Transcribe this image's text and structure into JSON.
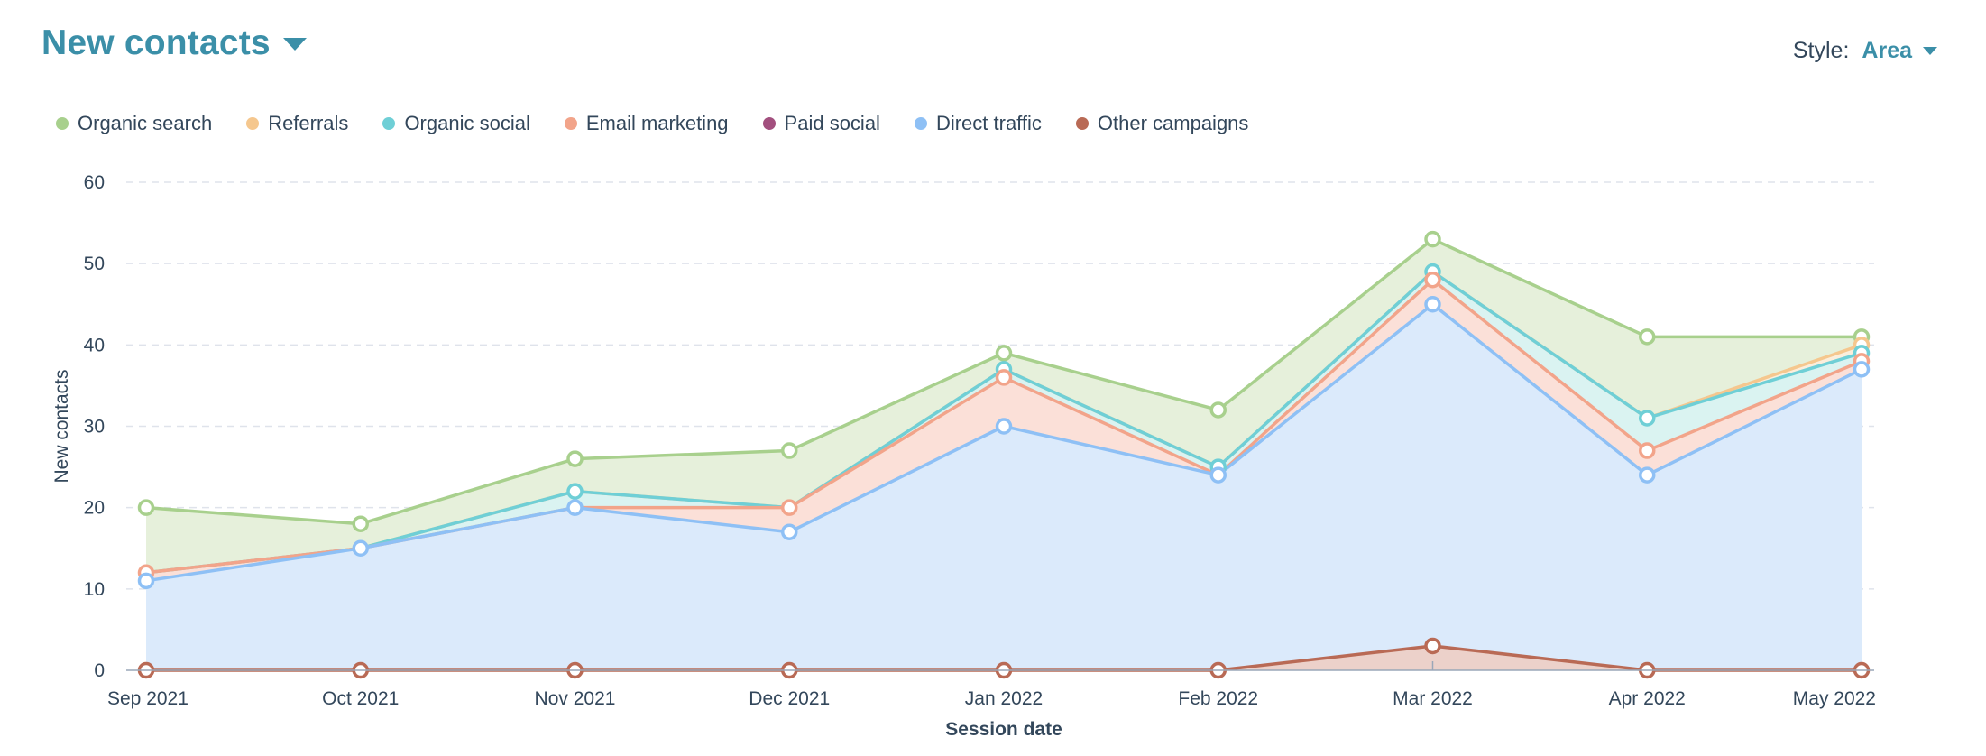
{
  "header": {
    "title": "New contacts",
    "style_label": "Style:",
    "style_value": "Area"
  },
  "colors": {
    "title": "#3b8fa8",
    "text": "#33475b",
    "grid": "#dfe3eb"
  },
  "legend": [
    {
      "name": "Organic search",
      "color": "#a8d08d"
    },
    {
      "name": "Referrals",
      "color": "#f5c78e"
    },
    {
      "name": "Organic social",
      "color": "#6fcfd6"
    },
    {
      "name": "Email marketing",
      "color": "#f2a48a"
    },
    {
      "name": "Paid social",
      "color": "#a24f7e"
    },
    {
      "name": "Direct traffic",
      "color": "#8ec0f5"
    },
    {
      "name": "Other campaigns",
      "color": "#b96a55"
    }
  ],
  "chart_data": {
    "type": "area",
    "stacked": true,
    "title": "New contacts",
    "xlabel": "Session date",
    "ylabel": "New contacts",
    "ylim": [
      0,
      60
    ],
    "yticks": [
      0,
      10,
      20,
      30,
      40,
      50,
      60
    ],
    "grid": true,
    "legend_position": "top-left",
    "categories": [
      "Sep 2021",
      "Oct 2021",
      "Nov 2021",
      "Dec 2021",
      "Jan 2022",
      "Feb 2022",
      "Mar 2022",
      "Apr 2022",
      "May 2022"
    ],
    "series": [
      {
        "name": "Other campaigns",
        "color": "#b96a55",
        "fill": "#ecd1ca",
        "values": [
          0,
          0,
          0,
          0,
          0,
          0,
          3,
          0,
          0
        ]
      },
      {
        "name": "Direct traffic",
        "color": "#8ec0f5",
        "fill": "#dbeafb",
        "values": [
          11,
          15,
          20,
          17,
          30,
          24,
          42,
          24,
          37
        ]
      },
      {
        "name": "Email marketing",
        "color": "#f2a48a",
        "fill": "#fbe0d8",
        "values": [
          1,
          0,
          0,
          3,
          6,
          0,
          3,
          3,
          1
        ]
      },
      {
        "name": "Organic social",
        "color": "#6fcfd6",
        "fill": "#daf3f1",
        "values": [
          0,
          0,
          2,
          0,
          1,
          1,
          1,
          4,
          1
        ]
      },
      {
        "name": "Referrals",
        "color": "#f5c78e",
        "fill": "#fbeedc",
        "values": [
          0,
          0,
          0,
          0,
          0,
          0,
          0,
          0,
          1
        ]
      },
      {
        "name": "Organic search",
        "color": "#a8d08d",
        "fill": "#e6f0db",
        "values": [
          8,
          3,
          4,
          7,
          2,
          7,
          4,
          10,
          1
        ]
      }
    ]
  }
}
